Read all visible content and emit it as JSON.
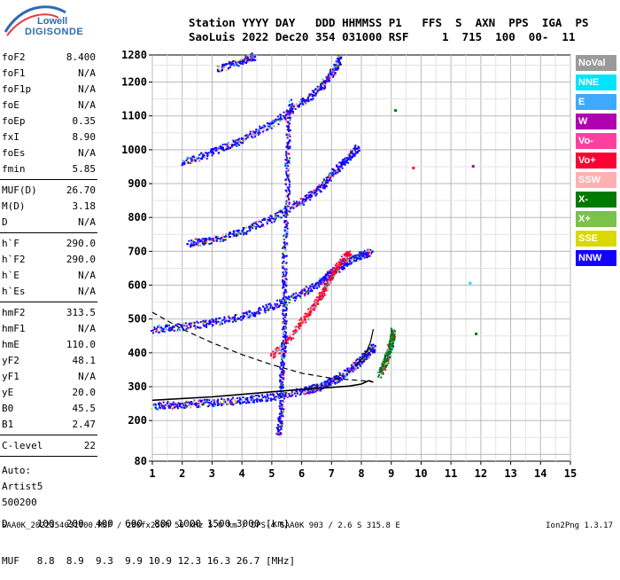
{
  "logo": {
    "line1": "Lowell",
    "line2": "DIGISONDE"
  },
  "header": {
    "line1": "Station YYYY DAY   DDD HHMMSS P1   FFS  S  AXN  PPS  IGA  PS",
    "line2": "SaoLuis 2022 Dec20 354 031000 RSF     1  715  100  00-  11"
  },
  "params_group1": [
    {
      "key": "foF2",
      "value": "8.400"
    },
    {
      "key": "foF1",
      "value": "N/A"
    },
    {
      "key": "foF1p",
      "value": "N/A"
    },
    {
      "key": "foE",
      "value": "N/A"
    },
    {
      "key": "foEp",
      "value": "0.35"
    },
    {
      "key": "fxI",
      "value": "8.90"
    },
    {
      "key": "foEs",
      "value": "N/A"
    },
    {
      "key": "fmin",
      "value": "5.85"
    }
  ],
  "params_group2": [
    {
      "key": "MUF(D)",
      "value": "26.70"
    },
    {
      "key": "M(D)",
      "value": "3.18"
    },
    {
      "key": "D",
      "value": "N/A"
    }
  ],
  "params_group3": [
    {
      "key": "h`F",
      "value": "290.0"
    },
    {
      "key": "h`F2",
      "value": "290.0"
    },
    {
      "key": "h`E",
      "value": "N/A"
    },
    {
      "key": "h`Es",
      "value": "N/A"
    }
  ],
  "params_group4": [
    {
      "key": "hmF2",
      "value": "313.5"
    },
    {
      "key": "hmF1",
      "value": "N/A"
    },
    {
      "key": "hmE",
      "value": "110.0"
    },
    {
      "key": "yF2",
      "value": "48.1"
    },
    {
      "key": "yF1",
      "value": "N/A"
    },
    {
      "key": "yE",
      "value": "20.0"
    },
    {
      "key": "B0",
      "value": "45.5"
    },
    {
      "key": "B1",
      "value": "2.47"
    }
  ],
  "params_group5": [
    {
      "key": "C-level",
      "value": "22"
    }
  ],
  "auto_text": [
    "Auto:",
    "Artist5",
    "500200"
  ],
  "legend": [
    {
      "label": "NoVal",
      "color": "#9a9a9a"
    },
    {
      "label": "NNE",
      "color": "#00e5ff"
    },
    {
      "label": "E",
      "color": "#3fa9ff"
    },
    {
      "label": "W",
      "color": "#b000b0"
    },
    {
      "label": "Vo-",
      "color": "#ff3fa0"
    },
    {
      "label": "Vo+",
      "color": "#ff0033"
    },
    {
      "label": "SSW",
      "color": "#ffb0b0"
    },
    {
      "label": "X-",
      "color": "#007a00"
    },
    {
      "label": "X+",
      "color": "#7ac24a"
    },
    {
      "label": "SSE",
      "color": "#d9d900"
    },
    {
      "label": "NNW",
      "color": "#1400ff"
    }
  ],
  "footer": {
    "d_line": "D     100  200  400  600  800 1000 1500 3000 [km]",
    "muf_line": "MUF   8.8  8.9  9.3  9.9 10.9 12.3 16.3 26.7 [MHz]",
    "bottom": "SAA0K_2022354031000.RSF / 280fx256h 50 kHz 5.0 km / DPS-4 SAA0K 903 / 2.6 S 315.8 E",
    "version": "Ion2Png 1.3.17"
  },
  "chart_data": {
    "type": "scatter",
    "xlim": [
      1,
      15
    ],
    "ylim": [
      80,
      1280
    ],
    "x_ticks": [
      "1",
      "2",
      "3",
      "4",
      "5",
      "6",
      "7",
      "8",
      "9",
      "10",
      "11",
      "12",
      "13",
      "14",
      "15"
    ],
    "y_ticks": [
      "80",
      "200",
      "300",
      "400",
      "500",
      "600",
      "700",
      "800",
      "900",
      "1000",
      "1100",
      "1200",
      "1280"
    ],
    "y_tick_values": [
      80,
      200,
      300,
      400,
      500,
      600,
      700,
      800,
      900,
      1000,
      1100,
      1200,
      1280
    ],
    "grid": true,
    "traces": [
      {
        "name": "F2 O 1st hop",
        "color": "#1400ff",
        "points": [
          [
            1.0,
            245
          ],
          [
            2.0,
            250
          ],
          [
            3.0,
            255
          ],
          [
            4.0,
            262
          ],
          [
            5.0,
            272
          ],
          [
            6.0,
            288
          ],
          [
            6.6,
            302
          ],
          [
            7.0,
            318
          ],
          [
            7.5,
            345
          ],
          [
            7.9,
            375
          ],
          [
            8.2,
            400
          ],
          [
            8.4,
            420
          ]
        ]
      },
      {
        "name": "F2 2nd hop",
        "color": "#1400ff",
        "points": [
          [
            1.0,
            472
          ],
          [
            2.0,
            480
          ],
          [
            3.0,
            492
          ],
          [
            4.0,
            510
          ],
          [
            5.0,
            540
          ],
          [
            6.0,
            578
          ],
          [
            6.6,
            610
          ],
          [
            7.0,
            640
          ],
          [
            7.5,
            670
          ],
          [
            8.0,
            690
          ],
          [
            8.3,
            700
          ]
        ]
      },
      {
        "name": "F2 3rd hop",
        "color": "#1400ff",
        "points": [
          [
            2.2,
            725
          ],
          [
            3.0,
            735
          ],
          [
            4.0,
            760
          ],
          [
            5.0,
            800
          ],
          [
            6.0,
            850
          ],
          [
            6.6,
            890
          ],
          [
            7.0,
            930
          ],
          [
            7.5,
            975
          ],
          [
            7.9,
            1010
          ]
        ]
      },
      {
        "name": "F2 4th hop",
        "color": "#1400ff",
        "points": [
          [
            2.0,
            965
          ],
          [
            3.0,
            995
          ],
          [
            4.0,
            1030
          ],
          [
            5.0,
            1080
          ],
          [
            6.0,
            1140
          ],
          [
            6.6,
            1185
          ],
          [
            7.0,
            1230
          ],
          [
            7.3,
            1275
          ]
        ]
      },
      {
        "name": "F2 5th hop",
        "color": "#1400ff",
        "points": [
          [
            3.2,
            1240
          ],
          [
            4.0,
            1265
          ],
          [
            4.4,
            1280
          ]
        ]
      },
      {
        "name": "X trace",
        "color": "#007a00",
        "points": [
          [
            8.6,
            340
          ],
          [
            8.8,
            375
          ],
          [
            8.9,
            410
          ],
          [
            9.0,
            440
          ],
          [
            9.05,
            470
          ]
        ]
      },
      {
        "name": "Oblique spread",
        "color": "#ff0033",
        "points": [
          [
            5.0,
            390
          ],
          [
            5.8,
            470
          ],
          [
            6.4,
            540
          ],
          [
            6.8,
            600
          ],
          [
            7.2,
            660
          ],
          [
            7.6,
            700
          ]
        ]
      },
      {
        "name": "F1 column",
        "color": "#1400ff",
        "points": [
          [
            5.2,
            160
          ],
          [
            5.3,
            230
          ],
          [
            5.3,
            340
          ],
          [
            5.4,
            450
          ],
          [
            5.4,
            560
          ],
          [
            5.4,
            700
          ],
          [
            5.5,
            850
          ],
          [
            5.5,
            1000
          ],
          [
            5.6,
            1150
          ]
        ]
      }
    ],
    "isolated_points": [
      {
        "x": 11.7,
        "y": 955,
        "color": "#b000b0"
      },
      {
        "x": 11.6,
        "y": 610,
        "color": "#00e5ff"
      },
      {
        "x": 11.8,
        "y": 460,
        "color": "#007a00"
      },
      {
        "x": 9.1,
        "y": 1120,
        "color": "#007a00"
      },
      {
        "x": 9.7,
        "y": 950,
        "color": "#ff0033"
      }
    ],
    "profile_curve": [
      [
        1.0,
        260
      ],
      [
        3.0,
        270
      ],
      [
        5.0,
        285
      ],
      [
        6.0,
        292
      ],
      [
        7.0,
        298
      ],
      [
        7.6,
        302
      ],
      [
        8.0,
        308
      ],
      [
        8.25,
        318
      ],
      [
        8.4,
        313.5
      ]
    ],
    "dashed_curve": [
      [
        1.0,
        520
      ],
      [
        2.0,
        470
      ],
      [
        3.0,
        430
      ],
      [
        4.0,
        395
      ],
      [
        5.0,
        365
      ],
      [
        6.0,
        340
      ],
      [
        7.0,
        325
      ],
      [
        8.0,
        318
      ],
      [
        8.4,
        314
      ]
    ],
    "upper_curve": [
      [
        7.8,
        360
      ],
      [
        8.1,
        390
      ],
      [
        8.3,
        430
      ],
      [
        8.4,
        470
      ]
    ]
  }
}
